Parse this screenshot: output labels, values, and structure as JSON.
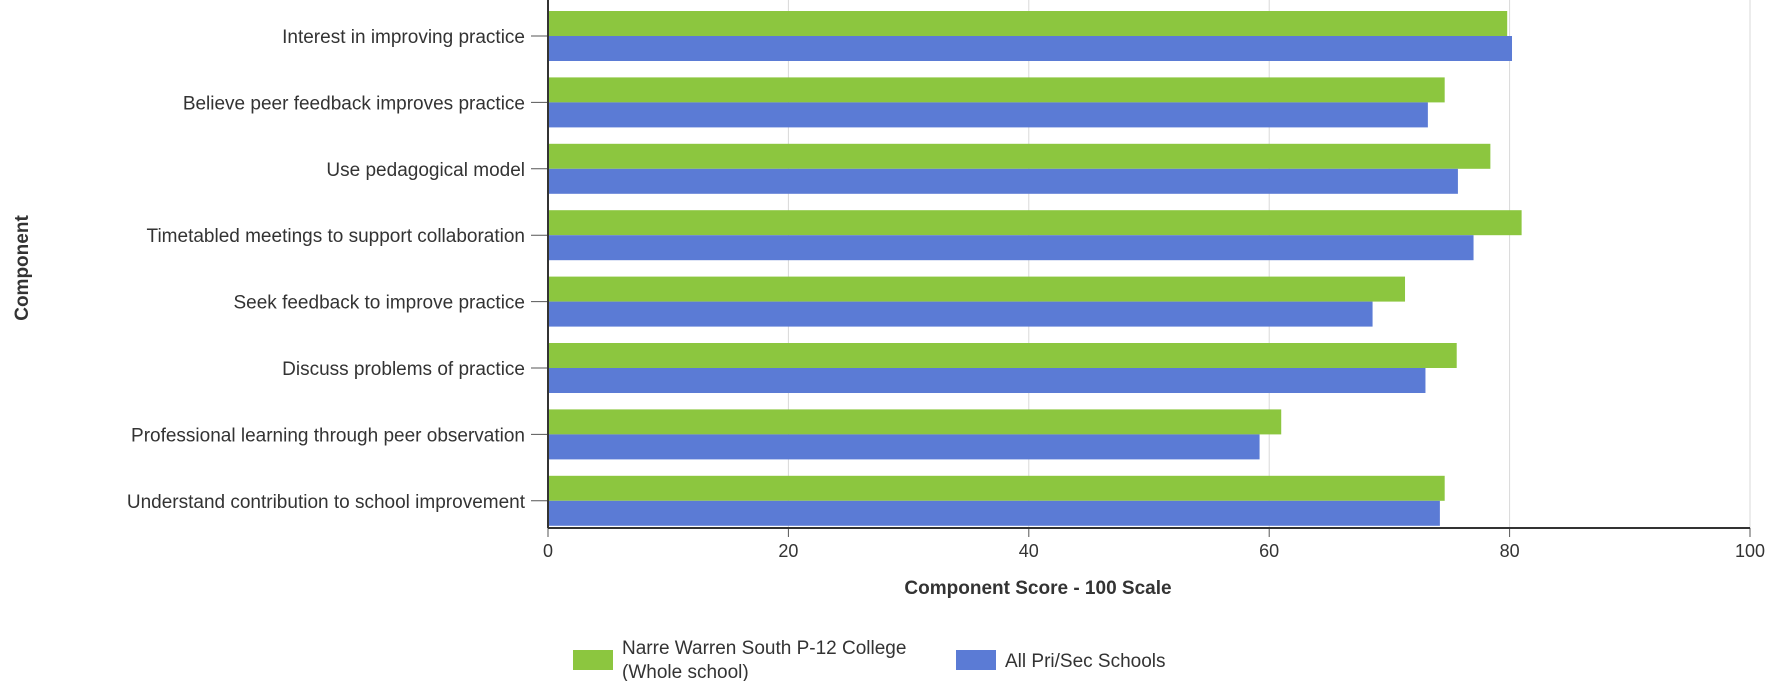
{
  "chart_data": {
    "type": "bar",
    "orientation": "horizontal",
    "categories": [
      "Interest in improving practice",
      "Believe peer feedback improves practice",
      "Use pedagogical model",
      "Timetabled meetings to support collaboration",
      "Seek feedback to improve practice",
      "Discuss problems of practice",
      "Professional learning through peer observation",
      "Understand contribution to school improvement"
    ],
    "series": [
      {
        "name_lines": [
          "Narre Warren South P-12 College",
          "(Whole school)"
        ],
        "color": "#8cc63f",
        "values": [
          79.8,
          74.6,
          78.4,
          81.0,
          71.3,
          75.6,
          61.0,
          74.6
        ]
      },
      {
        "name": "All Pri/Sec Schools",
        "color": "#5b7bd5",
        "values": [
          80.2,
          73.2,
          75.7,
          77.0,
          68.6,
          73.0,
          59.2,
          74.2
        ]
      }
    ],
    "xlabel": "Component Score - 100 Scale",
    "ylabel": "Component",
    "xlim": [
      0,
      100
    ],
    "xticks": [
      "0",
      "20",
      "40",
      "60",
      "80",
      "100"
    ],
    "grid": true,
    "legend_position": "bottom"
  }
}
